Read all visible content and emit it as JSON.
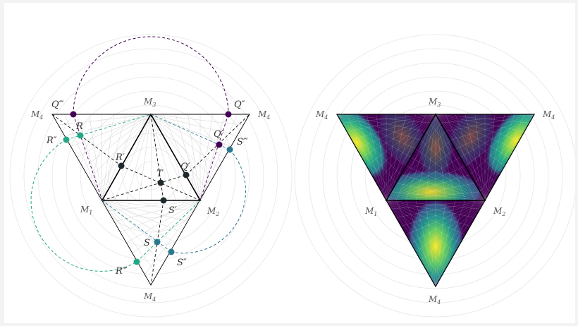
{
  "colors": {
    "purple": "#440154",
    "teal": "#2a788e",
    "green": "#22a884",
    "dark": "#1f2a2e",
    "grid": "#e6e6e6",
    "edge": "#000000"
  },
  "left_panel": {
    "vertices": {
      "M1": {
        "label": "M",
        "sub": "1"
      },
      "M2": {
        "label": "M",
        "sub": "2"
      },
      "M3": {
        "label": "M",
        "sub": "3"
      },
      "M4_left": {
        "label": "M",
        "sub": "4"
      },
      "M4_right": {
        "label": "M",
        "sub": "4"
      },
      "M4_bottom": {
        "label": "M",
        "sub": "4"
      }
    },
    "points": {
      "T": "T",
      "Q_prime": "Q′",
      "Q_dprime": "Q″",
      "Q_tprime": "Q‴",
      "R": "R",
      "R_prime": "R′",
      "R_dprime": "R″",
      "R_tprime": "R‴",
      "S": "S",
      "S_prime": "S′",
      "S_dprime": "S″",
      "S_tprime": "S‴"
    }
  },
  "right_panel": {
    "vertices": {
      "M1": {
        "label": "M",
        "sub": "1"
      },
      "M2": {
        "label": "M",
        "sub": "2"
      },
      "M3": {
        "label": "M",
        "sub": "3"
      },
      "M4_left": {
        "label": "M",
        "sub": "4"
      },
      "M4_right": {
        "label": "M",
        "sub": "4"
      },
      "M4_bottom": {
        "label": "M",
        "sub": "4"
      }
    },
    "colormap": "viridis"
  }
}
